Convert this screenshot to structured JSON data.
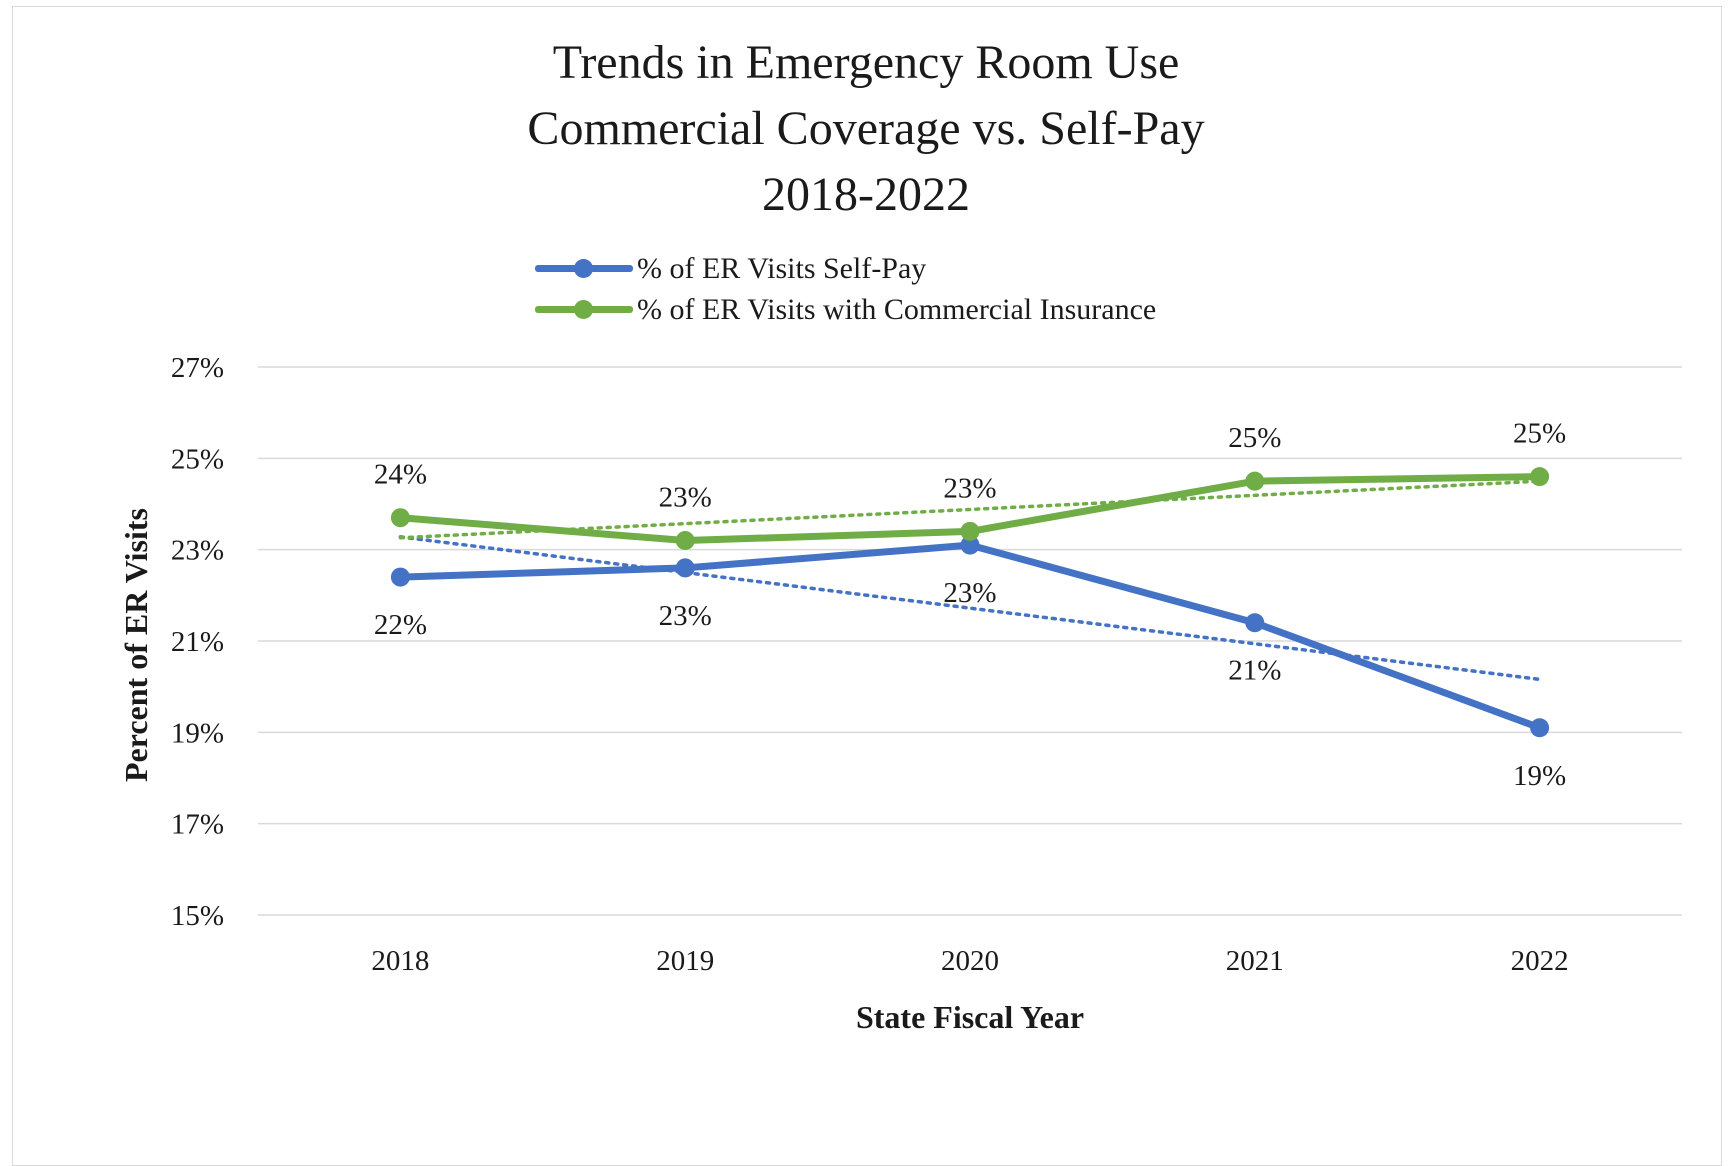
{
  "chart_data": {
    "type": "line",
    "title": "Trends in Emergency Room Use",
    "subtitle": "Commercial Coverage vs. Self-Pay",
    "subtitle2": "2018-2022",
    "xlabel": "State Fiscal Year",
    "ylabel": "Percent of ER Visits",
    "categories": [
      "2018",
      "2019",
      "2020",
      "2021",
      "2022"
    ],
    "ylim": [
      15,
      27
    ],
    "yticks": [
      15,
      17,
      19,
      21,
      23,
      25,
      27
    ],
    "ytick_labels": [
      "15%",
      "17%",
      "19%",
      "21%",
      "23%",
      "25%",
      "27%"
    ],
    "grid": true,
    "legend_position": "top-center",
    "trendlines": true,
    "series": [
      {
        "name": "% of ER Visits Self-Pay",
        "color": "#4472c4",
        "values": [
          22.4,
          22.6,
          23.1,
          21.4,
          19.1
        ],
        "data_labels": [
          "22%",
          "23%",
          "23%",
          "21%",
          "19%"
        ],
        "label_position": [
          "below",
          "below",
          "below",
          "below",
          "below"
        ]
      },
      {
        "name": "% of ER Visits with Commercial Insurance",
        "color": "#70ad47",
        "values": [
          23.7,
          23.2,
          23.4,
          24.5,
          24.6
        ],
        "data_labels": [
          "24%",
          "23%",
          "23%",
          "25%",
          "25%"
        ],
        "label_position": [
          "above",
          "above",
          "above",
          "above",
          "above"
        ]
      }
    ]
  }
}
